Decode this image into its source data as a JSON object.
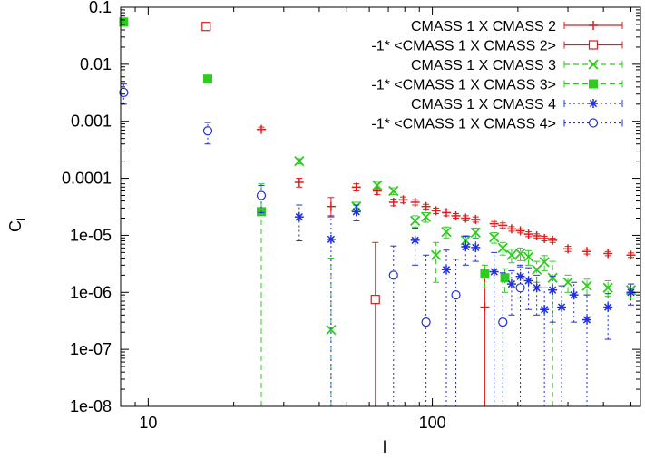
{
  "chart_data": {
    "type": "scatter",
    "xscale": "log",
    "yscale": "log",
    "xlim": [
      8,
      540
    ],
    "ylim": [
      1e-08,
      0.1
    ],
    "xlabel": "l",
    "ylabel": "C",
    "ylabel_subscript": "l",
    "xticks": [
      {
        "value": 10,
        "label": "10"
      },
      {
        "value": 100,
        "label": "100"
      }
    ],
    "yticks": [
      {
        "value": 0.1,
        "label": "0.1"
      },
      {
        "value": 0.01,
        "label": "0.01"
      },
      {
        "value": 0.001,
        "label": "0.001"
      },
      {
        "value": 0.0001,
        "label": "0.0001"
      },
      {
        "value": 1e-05,
        "label": "1e-05"
      },
      {
        "value": 1e-06,
        "label": "1e-06"
      },
      {
        "value": 1e-07,
        "label": "1e-07"
      },
      {
        "value": 1e-08,
        "label": "1e-08"
      }
    ],
    "legend_position": "top-right",
    "series": [
      {
        "name": "CMASS 1 X CMASS 2",
        "color": "#e41a1c",
        "marker": "plus",
        "dash": "",
        "points": [
          {
            "x": 25,
            "y": 0.00072,
            "lo": 0.00065,
            "hi": 0.00079
          },
          {
            "x": 34,
            "y": 8.5e-05,
            "lo": 7e-05,
            "hi": 0.0001
          },
          {
            "x": 44,
            "y": 3.2e-05,
            "lo": 2.1e-05,
            "hi": 4.6e-05
          },
          {
            "x": 54,
            "y": 7e-05,
            "lo": 6e-05,
            "hi": 8e-05
          },
          {
            "x": 64,
            "y": 6e-05,
            "lo": 5.2e-05,
            "hi": 6.8e-05
          },
          {
            "x": 73,
            "y": 3.8e-05,
            "lo": 3.3e-05,
            "hi": 4.3e-05
          },
          {
            "x": 79,
            "y": 4.2e-05,
            "lo": 3.7e-05,
            "hi": 4.7e-05
          },
          {
            "x": 87,
            "y": 3.8e-05,
            "lo": 3.4e-05,
            "hi": 4.2e-05
          },
          {
            "x": 95,
            "y": 3.2e-05,
            "lo": 2.9e-05,
            "hi": 3.5e-05
          },
          {
            "x": 103,
            "y": 2.7e-05,
            "lo": 2.4e-05,
            "hi": 3e-05
          },
          {
            "x": 112,
            "y": 2.5e-05,
            "lo": 2.2e-05,
            "hi": 2.8e-05
          },
          {
            "x": 121,
            "y": 2.2e-05,
            "lo": 2e-05,
            "hi": 2.4e-05
          },
          {
            "x": 131,
            "y": 2e-05,
            "lo": 1.8e-05,
            "hi": 2.2e-05
          },
          {
            "x": 142,
            "y": 1.9e-05,
            "lo": 1.7e-05,
            "hi": 2.1e-05
          },
          {
            "x": 153,
            "y": 5.5e-07,
            "lo": 1e-08,
            "hi": 2.2e-06
          },
          {
            "x": 165,
            "y": 1.6e-05,
            "lo": 1.45e-05,
            "hi": 1.75e-05
          },
          {
            "x": 177,
            "y": 1.5e-05,
            "lo": 1.35e-05,
            "hi": 1.65e-05
          },
          {
            "x": 190,
            "y": 1.3e-05,
            "lo": 1.18e-05,
            "hi": 1.42e-05
          },
          {
            "x": 204,
            "y": 1.2e-05,
            "lo": 1.1e-05,
            "hi": 1.3e-05
          },
          {
            "x": 218,
            "y": 1.05e-05,
            "lo": 9.5e-06,
            "hi": 1.15e-05
          },
          {
            "x": 233,
            "y": 9.8e-06,
            "lo": 9e-06,
            "hi": 1.06e-05
          },
          {
            "x": 248,
            "y": 8.8e-06,
            "lo": 8e-06,
            "hi": 9.6e-06
          },
          {
            "x": 265,
            "y": 8.2e-06,
            "lo": 7.5e-06,
            "hi": 8.9e-06
          },
          {
            "x": 300,
            "y": 5.8e-06,
            "lo": 5.2e-06,
            "hi": 6.4e-06
          },
          {
            "x": 350,
            "y": 5.2e-06,
            "lo": 4.7e-06,
            "hi": 5.7e-06
          },
          {
            "x": 415,
            "y": 4.8e-06,
            "lo": 4.4e-06,
            "hi": 5.2e-06
          },
          {
            "x": 500,
            "y": 4.5e-06,
            "lo": 4.1e-06,
            "hi": 4.9e-06
          }
        ]
      },
      {
        "name": "-1* <CMASS 1 X CMASS 2>",
        "color": "#e41a1c",
        "marker": "square-open",
        "dash": "",
        "points": [
          {
            "x": 16,
            "y": 0.046,
            "lo": 0.04,
            "hi": 0.052
          },
          {
            "x": 63,
            "y": 7.5e-07,
            "lo": 1e-08,
            "hi": 7.5e-06
          }
        ]
      },
      {
        "name": "CMASS 1 X CMASS 3",
        "color": "#2ecc1f",
        "marker": "cross",
        "dash": "6,4",
        "points": [
          {
            "x": 34,
            "y": 0.0002,
            "lo": 0.00018,
            "hi": 0.00022
          },
          {
            "x": 44,
            "y": 2.2e-07,
            "lo": 1e-08,
            "hi": 4e-06
          },
          {
            "x": 54,
            "y": 3.2e-05,
            "lo": 2.6e-05,
            "hi": 3.8e-05
          },
          {
            "x": 64,
            "y": 7.5e-05,
            "lo": 6.5e-05,
            "hi": 8.5e-05
          },
          {
            "x": 73,
            "y": 6e-05,
            "lo": 5.2e-05,
            "hi": 6.8e-05
          },
          {
            "x": 87,
            "y": 1.8e-05,
            "lo": 1.4e-05,
            "hi": 2.2e-05
          },
          {
            "x": 95,
            "y": 2.1e-05,
            "lo": 1.7e-05,
            "hi": 2.5e-05
          },
          {
            "x": 103,
            "y": 4.5e-06,
            "lo": 1.5e-06,
            "hi": 7.5e-06
          },
          {
            "x": 112,
            "y": 1.15e-05,
            "lo": 9e-06,
            "hi": 1.4e-05
          },
          {
            "x": 131,
            "y": 8.2e-06,
            "lo": 6.5e-06,
            "hi": 9.9e-06
          },
          {
            "x": 142,
            "y": 1.12e-05,
            "lo": 9e-06,
            "hi": 1.34e-05
          },
          {
            "x": 165,
            "y": 9.2e-06,
            "lo": 7.3e-06,
            "hi": 1.11e-05
          },
          {
            "x": 177,
            "y": 6e-06,
            "lo": 4.5e-06,
            "hi": 7.5e-06
          },
          {
            "x": 190,
            "y": 4.5e-06,
            "lo": 3.3e-06,
            "hi": 5.7e-06
          },
          {
            "x": 204,
            "y": 4.8e-06,
            "lo": 3.6e-06,
            "hi": 6e-06
          },
          {
            "x": 218,
            "y": 4.2e-06,
            "lo": 3e-06,
            "hi": 5.4e-06
          },
          {
            "x": 233,
            "y": 2.5e-06,
            "lo": 1.5e-06,
            "hi": 3.5e-06
          },
          {
            "x": 248,
            "y": 3.4e-06,
            "lo": 2.4e-06,
            "hi": 4.4e-06
          },
          {
            "x": 265,
            "y": 1.8e-06,
            "lo": 1e-08,
            "hi": 3.5e-06
          },
          {
            "x": 300,
            "y": 1.5e-06,
            "lo": 1e-06,
            "hi": 2e-06
          },
          {
            "x": 350,
            "y": 1.3e-06,
            "lo": 9e-07,
            "hi": 1.7e-06
          },
          {
            "x": 415,
            "y": 1.2e-06,
            "lo": 8.5e-07,
            "hi": 1.6e-06
          },
          {
            "x": 500,
            "y": 1.1e-06,
            "lo": 8e-07,
            "hi": 1.4e-06
          }
        ]
      },
      {
        "name": "-1* <CMASS 1 X CMASS 3>",
        "color": "#2ecc1f",
        "marker": "square-filled",
        "dash": "6,4",
        "points": [
          {
            "x": 8.2,
            "y": 0.055,
            "lo": 0.05,
            "hi": 0.06
          },
          {
            "x": 16.2,
            "y": 0.0055,
            "lo": 0.005,
            "hi": 0.006
          },
          {
            "x": 25,
            "y": 2.6e-05,
            "lo": 1e-08,
            "hi": 8e-05
          },
          {
            "x": 153,
            "y": 2.1e-06,
            "lo": 1.2e-06,
            "hi": 3e-06
          },
          {
            "x": 180,
            "y": 1.8e-06,
            "lo": 1e-06,
            "hi": 2.6e-06
          }
        ]
      },
      {
        "name": "CMASS 1 X CMASS 4",
        "color": "#1f2ee0",
        "marker": "star",
        "dash": "2,3",
        "points": [
          {
            "x": 34,
            "y": 2.1e-05,
            "lo": 8e-06,
            "hi": 3.4e-05
          },
          {
            "x": 44,
            "y": 8.5e-06,
            "lo": 1e-08,
            "hi": 2.2e-05
          },
          {
            "x": 54,
            "y": 2.6e-05,
            "lo": 1.8e-05,
            "hi": 3.4e-05
          },
          {
            "x": 87,
            "y": 8.2e-06,
            "lo": 3e-06,
            "hi": 1.34e-05
          },
          {
            "x": 112,
            "y": 2.5e-06,
            "lo": 1e-08,
            "hi": 5.5e-06
          },
          {
            "x": 131,
            "y": 6.3e-06,
            "lo": 3e-06,
            "hi": 9.6e-06
          },
          {
            "x": 142,
            "y": 6.1e-06,
            "lo": 3.5e-06,
            "hi": 8.7e-06
          },
          {
            "x": 165,
            "y": 2.3e-06,
            "lo": 1e-08,
            "hi": 5e-06
          },
          {
            "x": 190,
            "y": 1.4e-06,
            "lo": 4e-07,
            "hi": 2.4e-06
          },
          {
            "x": 204,
            "y": 1.9e-06,
            "lo": 8e-07,
            "hi": 3e-06
          },
          {
            "x": 218,
            "y": 1.6e-06,
            "lo": 5e-07,
            "hi": 2.7e-06
          },
          {
            "x": 233,
            "y": 1.2e-06,
            "lo": 4e-07,
            "hi": 2e-06
          },
          {
            "x": 248,
            "y": 5e-07,
            "lo": 1e-08,
            "hi": 1.2e-06
          },
          {
            "x": 265,
            "y": 1.1e-06,
            "lo": 3e-07,
            "hi": 1.9e-06
          },
          {
            "x": 285,
            "y": 5.5e-07,
            "lo": 1e-08,
            "hi": 1.3e-06
          },
          {
            "x": 315,
            "y": 9e-07,
            "lo": 3e-07,
            "hi": 1.5e-06
          },
          {
            "x": 350,
            "y": 3.3e-07,
            "lo": 1e-08,
            "hi": 9e-07
          },
          {
            "x": 415,
            "y": 5.5e-07,
            "lo": 1.5e-07,
            "hi": 9.5e-07
          },
          {
            "x": 500,
            "y": 1e-06,
            "lo": 6e-07,
            "hi": 1.4e-06
          }
        ]
      },
      {
        "name": "-1* <CMASS 1 X CMASS 4>",
        "color": "#1f2ee0",
        "marker": "circle-open",
        "dash": "2,3",
        "points": [
          {
            "x": 8.2,
            "y": 0.0032,
            "lo": 0.002,
            "hi": 0.0045
          },
          {
            "x": 16.2,
            "y": 0.00068,
            "lo": 0.0004,
            "hi": 0.00095
          },
          {
            "x": 25,
            "y": 5e-05,
            "lo": 2.5e-05,
            "hi": 7.5e-05
          },
          {
            "x": 73,
            "y": 2e-06,
            "lo": 1e-08,
            "hi": 6.5e-06
          },
          {
            "x": 95,
            "y": 3e-07,
            "lo": 1e-08,
            "hi": 4.5e-06
          },
          {
            "x": 121,
            "y": 9e-07,
            "lo": 1e-08,
            "hi": 3.8e-06
          },
          {
            "x": 177,
            "y": 3e-07,
            "lo": 1e-08,
            "hi": 2.2e-06
          },
          {
            "x": 204,
            "y": 1.2e-06,
            "lo": 1e-08,
            "hi": 2.8e-06
          }
        ]
      }
    ]
  }
}
